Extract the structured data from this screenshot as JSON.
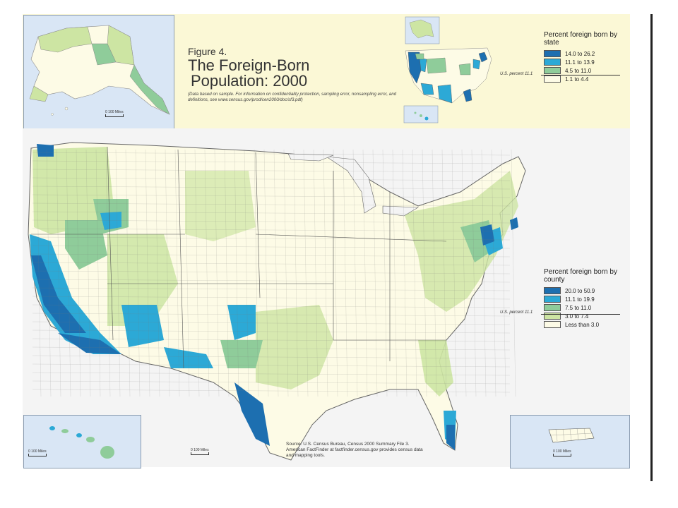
{
  "figure": {
    "number": "Figure 4.",
    "title_line1": "The Foreign-Born",
    "title_line2": "Population: 2000",
    "note": "(Data based on sample. For information on confidentiality protection, sampling error, nonsampling error, and definitions, see www.census.gov/prod/cen2000/doc/sf3.pdf)"
  },
  "state_legend": {
    "title": "Percent foreign born by state",
    "us_percent": "U.S. percent 11.1",
    "classes": [
      {
        "label": "14.0 to 26.2",
        "color": "#1d6fb0"
      },
      {
        "label": "11.1 to 13.9",
        "color": "#2ca9d6"
      },
      {
        "label": "4.5 to 11.0",
        "color": "#8fcc9a"
      },
      {
        "label": "1.1 to 4.4",
        "color": "#fdfbe6"
      }
    ]
  },
  "county_legend": {
    "title": "Percent foreign born by county",
    "us_percent": "U.S. percent 11.1",
    "classes": [
      {
        "label": "20.0 to 50.9",
        "color": "#1d6fb0"
      },
      {
        "label": "11.1 to 19.9",
        "color": "#2ca9d6"
      },
      {
        "label": "7.5 to 11.0",
        "color": "#8fcc9a"
      },
      {
        "label": "3.0 to 7.4",
        "color": "#cde5a3"
      },
      {
        "label": "Less than 3.0",
        "color": "#fdfbe6"
      }
    ]
  },
  "scale_labels": {
    "alaska": "100 Miles",
    "hawaii": "100 Miles",
    "conus": "100 Miles",
    "puerto_rico": "100 Miles",
    "zero": "0"
  },
  "source": "Source: U.S. Census Bureau, Census 2000 Summary File 3. American FactFinder at factfinder.census.gov provides census data and mapping tools."
}
